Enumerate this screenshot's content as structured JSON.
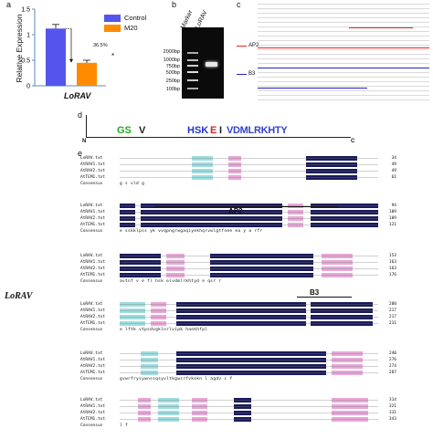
{
  "panel_a": {
    "label": "a",
    "ylabel": "Relative Expression",
    "xlabel": "LoRAV",
    "percent_annotation": "36.5%",
    "significance": "*",
    "legend": [
      {
        "name": "Control",
        "color": "#5555ee"
      },
      {
        "name": "M20",
        "color": "#ff8c00"
      }
    ]
  },
  "chart_data": {
    "type": "bar",
    "categories": [
      "Control",
      "M20"
    ],
    "values": [
      1.12,
      0.45
    ],
    "errors": [
      0.08,
      0.05
    ],
    "xlabel": "LoRAV",
    "ylabel": "Relative Expression",
    "ylim": [
      0,
      1.5
    ],
    "yticks": [
      "0",
      "0.5",
      "1",
      "1.5"
    ],
    "colors": [
      "#5555ee",
      "#ff8c00"
    ],
    "legend_position": "top-right"
  },
  "panel_b": {
    "label": "b",
    "lane_labels": [
      "Marker",
      "LoRAV"
    ],
    "size_markers": [
      "2000bp",
      "1000bp",
      "750bp",
      "500bp",
      "250bp",
      "100bp"
    ]
  },
  "panel_c": {
    "label": "c",
    "domain_labels": [
      "AP2",
      "B3"
    ]
  },
  "panel_d": {
    "label": "d",
    "motif_segments": [
      "GS",
      "V",
      "HSK",
      "E",
      "I",
      "VDMLRKHTY"
    ],
    "n_label": "N",
    "c_label": "C",
    "axis_ticks": [
      "4",
      "3",
      "2",
      "1",
      "0"
    ]
  },
  "panel_e": {
    "label": "e",
    "side_label": "LoRAV",
    "domain_labels": [
      "AP2",
      "B3"
    ],
    "consensus_label": "Consensus",
    "blocks": [
      {
        "names": [
          "LoRAV.txt",
          "AtRAV1.txt",
          "AtRAV2.txt",
          "AtTEM1.txt"
        ],
        "numbers": [
          "34",
          "49",
          "49",
          "61"
        ],
        "consensus": "g s vld g"
      },
      {
        "names": [
          "LoRAV.txt",
          "AtRAV1.txt",
          "AtRAV2.txt",
          "AtTEM1.txt"
        ],
        "numbers": [
          "94",
          "109",
          "109",
          "121"
        ],
        "consensus": "e sskklpss yk vvqpngrwgaqiyekhqrvwlgtfnee ea y a rfr"
      },
      {
        "names": [
          "LoRAV.txt",
          "AtRAV1.txt",
          "AtRAV2.txt",
          "AtTEM1.txt"
        ],
        "numbers": [
          "153",
          "163",
          "163",
          "176"
        ],
        "consensus": "avtnf v e fl hsk eivdmlrkhtyd e qsr r"
      },
      {
        "names": [
          "LoRAV.txt",
          "AtRAV1.txt",
          "AtRAV2.txt",
          "AtTEM1.txt"
        ],
        "numbers": [
          "200",
          "217",
          "217",
          "231"
        ],
        "consensus": "e lftk vtpsdvgklnrlvipk haekhfpl"
      },
      {
        "names": [
          "LoRAV.txt",
          "AtRAV1.txt",
          "AtRAV2.txt",
          "AtTEM1.txt"
        ],
        "numbers": [
          "240",
          "276",
          "274",
          "287"
        ],
        "consensus": "gvwrfrysywnssqsyvltkgwsrfvkekn l agdv c f"
      },
      {
        "names": [
          "LoRAV.txt",
          "AtRAV1.txt",
          "AtRAV2.txt",
          "AtTEM1.txt"
        ],
        "numbers": [
          "314",
          "321",
          "331",
          "343"
        ],
        "consensus": "l f"
      }
    ]
  }
}
